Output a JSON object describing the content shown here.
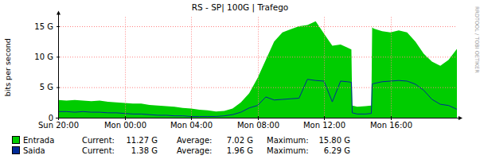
{
  "chart_data": {
    "type": "line",
    "title": "RS - SP| 100G | Trafego",
    "y_label": "bits per second",
    "watermark": "RRDTOOL / TOBI OETIKER",
    "x": [
      0,
      0.5,
      1,
      1.5,
      2,
      2.5,
      3,
      3.5,
      4,
      4.5,
      5,
      5.5,
      6,
      6.5,
      7,
      7.5,
      8,
      8.5,
      9,
      9.5,
      10,
      10.5,
      11,
      11.5,
      12,
      12.5,
      13,
      13.5,
      14,
      14.5,
      15,
      15.5,
      16,
      16.5,
      17,
      17.4,
      17.65,
      17.7,
      18,
      18.5,
      18.85,
      18.9,
      19,
      19.5,
      20,
      20.5,
      21,
      21.5,
      22,
      22.5,
      23,
      23.5,
      24
    ],
    "xlim": [
      0,
      24
    ],
    "xticks": [
      {
        "value": 0,
        "label": "Sun 20:00"
      },
      {
        "value": 4,
        "label": "Mon 00:00"
      },
      {
        "value": 8,
        "label": "Mon 04:00"
      },
      {
        "value": 12,
        "label": "Mon 08:00"
      },
      {
        "value": 16,
        "label": "Mon 12:00"
      },
      {
        "value": 20,
        "label": "Mon 16:00"
      }
    ],
    "ylim": [
      0,
      16.5
    ],
    "yticks": [
      0,
      {
        "value": 5,
        "label": "5 G"
      },
      {
        "value": 10,
        "label": "10 G"
      },
      {
        "value": 15,
        "label": "15 G"
      }
    ],
    "grid": true,
    "legend": "bottom",
    "stats_labels": [
      "Current:",
      "Average:",
      "Maximum:"
    ],
    "series": [
      {
        "name": "Entrada",
        "type": "area",
        "color": "#00cc00",
        "stats": [
          "11.27 G",
          "7.02 G",
          "15.80 G"
        ],
        "values": [
          2.9,
          2.8,
          2.9,
          2.8,
          2.7,
          2.8,
          2.6,
          2.5,
          2.4,
          2.3,
          2.3,
          2.1,
          2.0,
          1.9,
          1.8,
          1.6,
          1.5,
          1.3,
          1.2,
          1.0,
          1.1,
          1.5,
          2.5,
          4.0,
          6.5,
          9.5,
          12.5,
          14.0,
          14.5,
          15.0,
          15.2,
          15.8,
          13.8,
          11.8,
          12.0,
          11.5,
          11.2,
          2.0,
          1.8,
          1.9,
          2.0,
          14.8,
          14.6,
          14.2,
          14.0,
          14.3,
          14.0,
          12.5,
          10.5,
          9.2,
          8.5,
          9.5,
          11.27
        ]
      },
      {
        "name": "Saida",
        "type": "line",
        "color": "#002a97",
        "stats": [
          "1.38 G",
          "1.96 G",
          "6.29 G"
        ],
        "values": [
          1.0,
          1.0,
          0.9,
          1.0,
          0.9,
          0.9,
          0.8,
          0.8,
          0.7,
          0.6,
          0.6,
          0.5,
          0.4,
          0.4,
          0.3,
          0.3,
          0.2,
          0.2,
          0.2,
          0.2,
          0.3,
          0.5,
          0.9,
          1.6,
          2.0,
          3.4,
          2.9,
          3.0,
          3.1,
          3.2,
          6.29,
          6.1,
          6.0,
          2.6,
          6.0,
          5.9,
          5.8,
          0.8,
          0.6,
          0.6,
          0.7,
          5.5,
          5.6,
          5.9,
          6.0,
          6.1,
          6.0,
          5.5,
          4.5,
          3.0,
          2.2,
          2.0,
          1.38
        ]
      }
    ]
  }
}
